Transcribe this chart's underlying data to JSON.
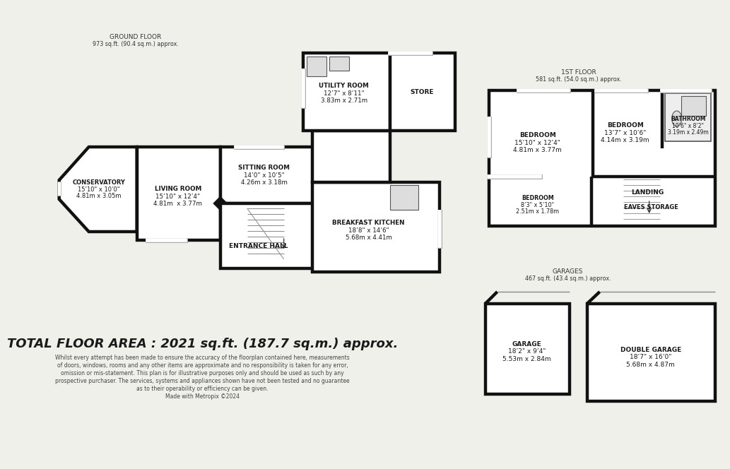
{
  "bg_color": "#f0f0eb",
  "wall_color": "#111111",
  "wall_lw": 3.2,
  "fill_color": "#ffffff",
  "ground_floor_header": "GROUND FLOOR",
  "ground_floor_sub": "973 sq.ft. (90.4 sq.m.) approx.",
  "first_floor_header": "1ST FLOOR",
  "first_floor_sub": "581 sq.ft. (54.0 sq.m.) approx.",
  "garages_header": "GARAGES",
  "garages_sub": "467 sq.ft. (43.4 sq.m.) approx.",
  "total_area": "TOTAL FLOOR AREA : 2021 sq.ft. (187.7 sq.m.) approx.",
  "disclaimer_lines": [
    "Whilst every attempt has been made to ensure the accuracy of the floorplan contained here, measurements",
    "of doors, windows, rooms and any other items are approximate and no responsibility is taken for any error,",
    "omission or mis-statement. This plan is for illustrative purposes only and should be used as such by any",
    "prospective purchaser. The services, systems and appliances shown have not been tested and no guarantee",
    "as to their operability or efficiency can be given.",
    "Made with Metropix ©2024"
  ],
  "conservatory_lines": [
    "CONSERVATORY",
    "15’10\" x 10’0\"",
    "4.81m x 3.05m"
  ],
  "living_room_lines": [
    "LIVING ROOM",
    "15’10\" x 12’4\"",
    "4.81m  x 3.77m"
  ],
  "sitting_room_lines": [
    "SITTING ROOM",
    "14’0\" x 10’5\"",
    "4.26m x 3.18m"
  ],
  "entrance_hall_lines": [
    "ENTRANCE HALL"
  ],
  "breakfast_kitchen_lines": [
    "BREAKFAST KITCHEN",
    "18’8\" x 14’6\"",
    "5.68m x 4.41m"
  ],
  "utility_room_lines": [
    "UTILITY ROOM",
    "12’7\" x 8’11\"",
    "3.83m x 2.71m"
  ],
  "store_lines": [
    "STORE"
  ],
  "bedroom1_lines": [
    "BEDROOM",
    "15’10\" x 12’4\"",
    "4.81m x 3.77m"
  ],
  "bedroom2_lines": [
    "BEDROOM",
    "13’7\" x 10’6\"",
    "4.14m x 3.19m"
  ],
  "bathroom_lines": [
    "BATHROOM",
    "10’6\" x 8’2\"",
    "3.19m x 2.49m"
  ],
  "landing_lines": [
    "LANDING"
  ],
  "bedroom3_lines": [
    "BEDROOM",
    "8’3\" x 5’10\"",
    "2.51m x 1.78m"
  ],
  "eaves_storage_lines": [
    "EAVES STORAGE"
  ],
  "garage_lines": [
    "GARAGE",
    "18’2\" x 9’4\"",
    "5.53m x 2.84m"
  ],
  "double_garage_lines": [
    "DOUBLE GARAGE",
    "18’7\" x 16’0\"",
    "5.68m x 4.87m"
  ]
}
